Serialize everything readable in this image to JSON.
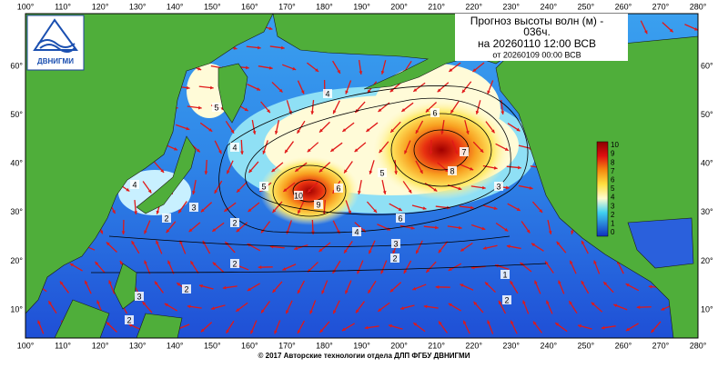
{
  "title": [
    "Прогноз высоты волн (м) -",
    "036ч.",
    "на 20260110 12:00 ВСВ",
    "от 20260109 00:00 ВСВ"
  ],
  "logo": "ДВНИГМИ",
  "lon_labels": [
    "100°",
    "110°",
    "120°",
    "130°",
    "140°",
    "150°",
    "160°",
    "170°",
    "180°",
    "190°",
    "200°",
    "210°",
    "220°",
    "230°",
    "240°",
    "250°",
    "260°",
    "270°",
    "280°"
  ],
  "lat_labels": [
    "60°",
    "50°",
    "40°",
    "30°",
    "20°",
    "10°"
  ],
  "colorbar_labels": [
    "10",
    "9",
    "8",
    "7",
    "6",
    "5",
    "4",
    "3",
    "2",
    "1",
    "0"
  ],
  "contour_labels": [
    "5",
    "4",
    "4",
    "6",
    "7",
    "8",
    "5",
    "5",
    "10",
    "9",
    "6",
    "6",
    "4",
    "3",
    "3",
    "2",
    "2",
    "2",
    "2",
    "3",
    "2",
    "1",
    "4",
    "3",
    "2",
    "2"
  ],
  "footer": "© 2017 Авторские технологии отдела ДЛП ФГБУ ДВНИГМИ"
}
